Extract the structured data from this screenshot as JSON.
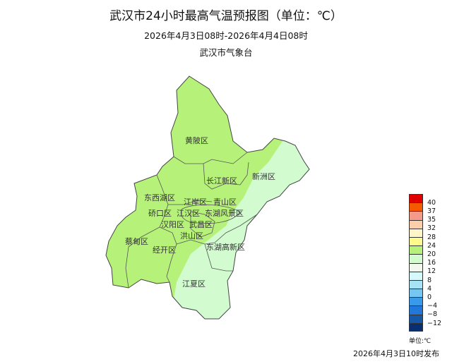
{
  "title": "武汉市24小时最高气温预报图（单位：℃）",
  "subtitle": "2026年4月3日08时-2026年4月4日08时",
  "organization": "武汉市气象台",
  "districts": [
    "黄陂区",
    "长江新区",
    "新洲区",
    "东西湖区",
    "江岸区",
    "青山区",
    "硚口区",
    "江汉区",
    "武昌区",
    "东湖风景区",
    "汉阳区",
    "蔡甸区",
    "洪山区",
    "经开区",
    "东湖高新区",
    "江夏区"
  ],
  "legend": {
    "unit": "单位:℃",
    "ticks": [
      "40",
      "37",
      "35",
      "32",
      "28",
      "24",
      "20",
      "16",
      "12",
      "8",
      "4",
      "0",
      "−4",
      "−8",
      "−12"
    ],
    "colors": [
      "#e00000",
      "#f55a00",
      "#f5998a",
      "#fcceaa",
      "#fff5c8",
      "#fffa8c",
      "#b6f27a",
      "#d2fcd0",
      "#f2f8ee",
      "#d6fafc",
      "#a6e4f5",
      "#76c6f2",
      "#3a9aea",
      "#2278d8",
      "#1658a8",
      "#0a2f70"
    ]
  },
  "fill_colors": {
    "20-24": "#b6f27a",
    "16-20": "#d2fcd0"
  },
  "publish_time": "2026年4月3日10时发布"
}
